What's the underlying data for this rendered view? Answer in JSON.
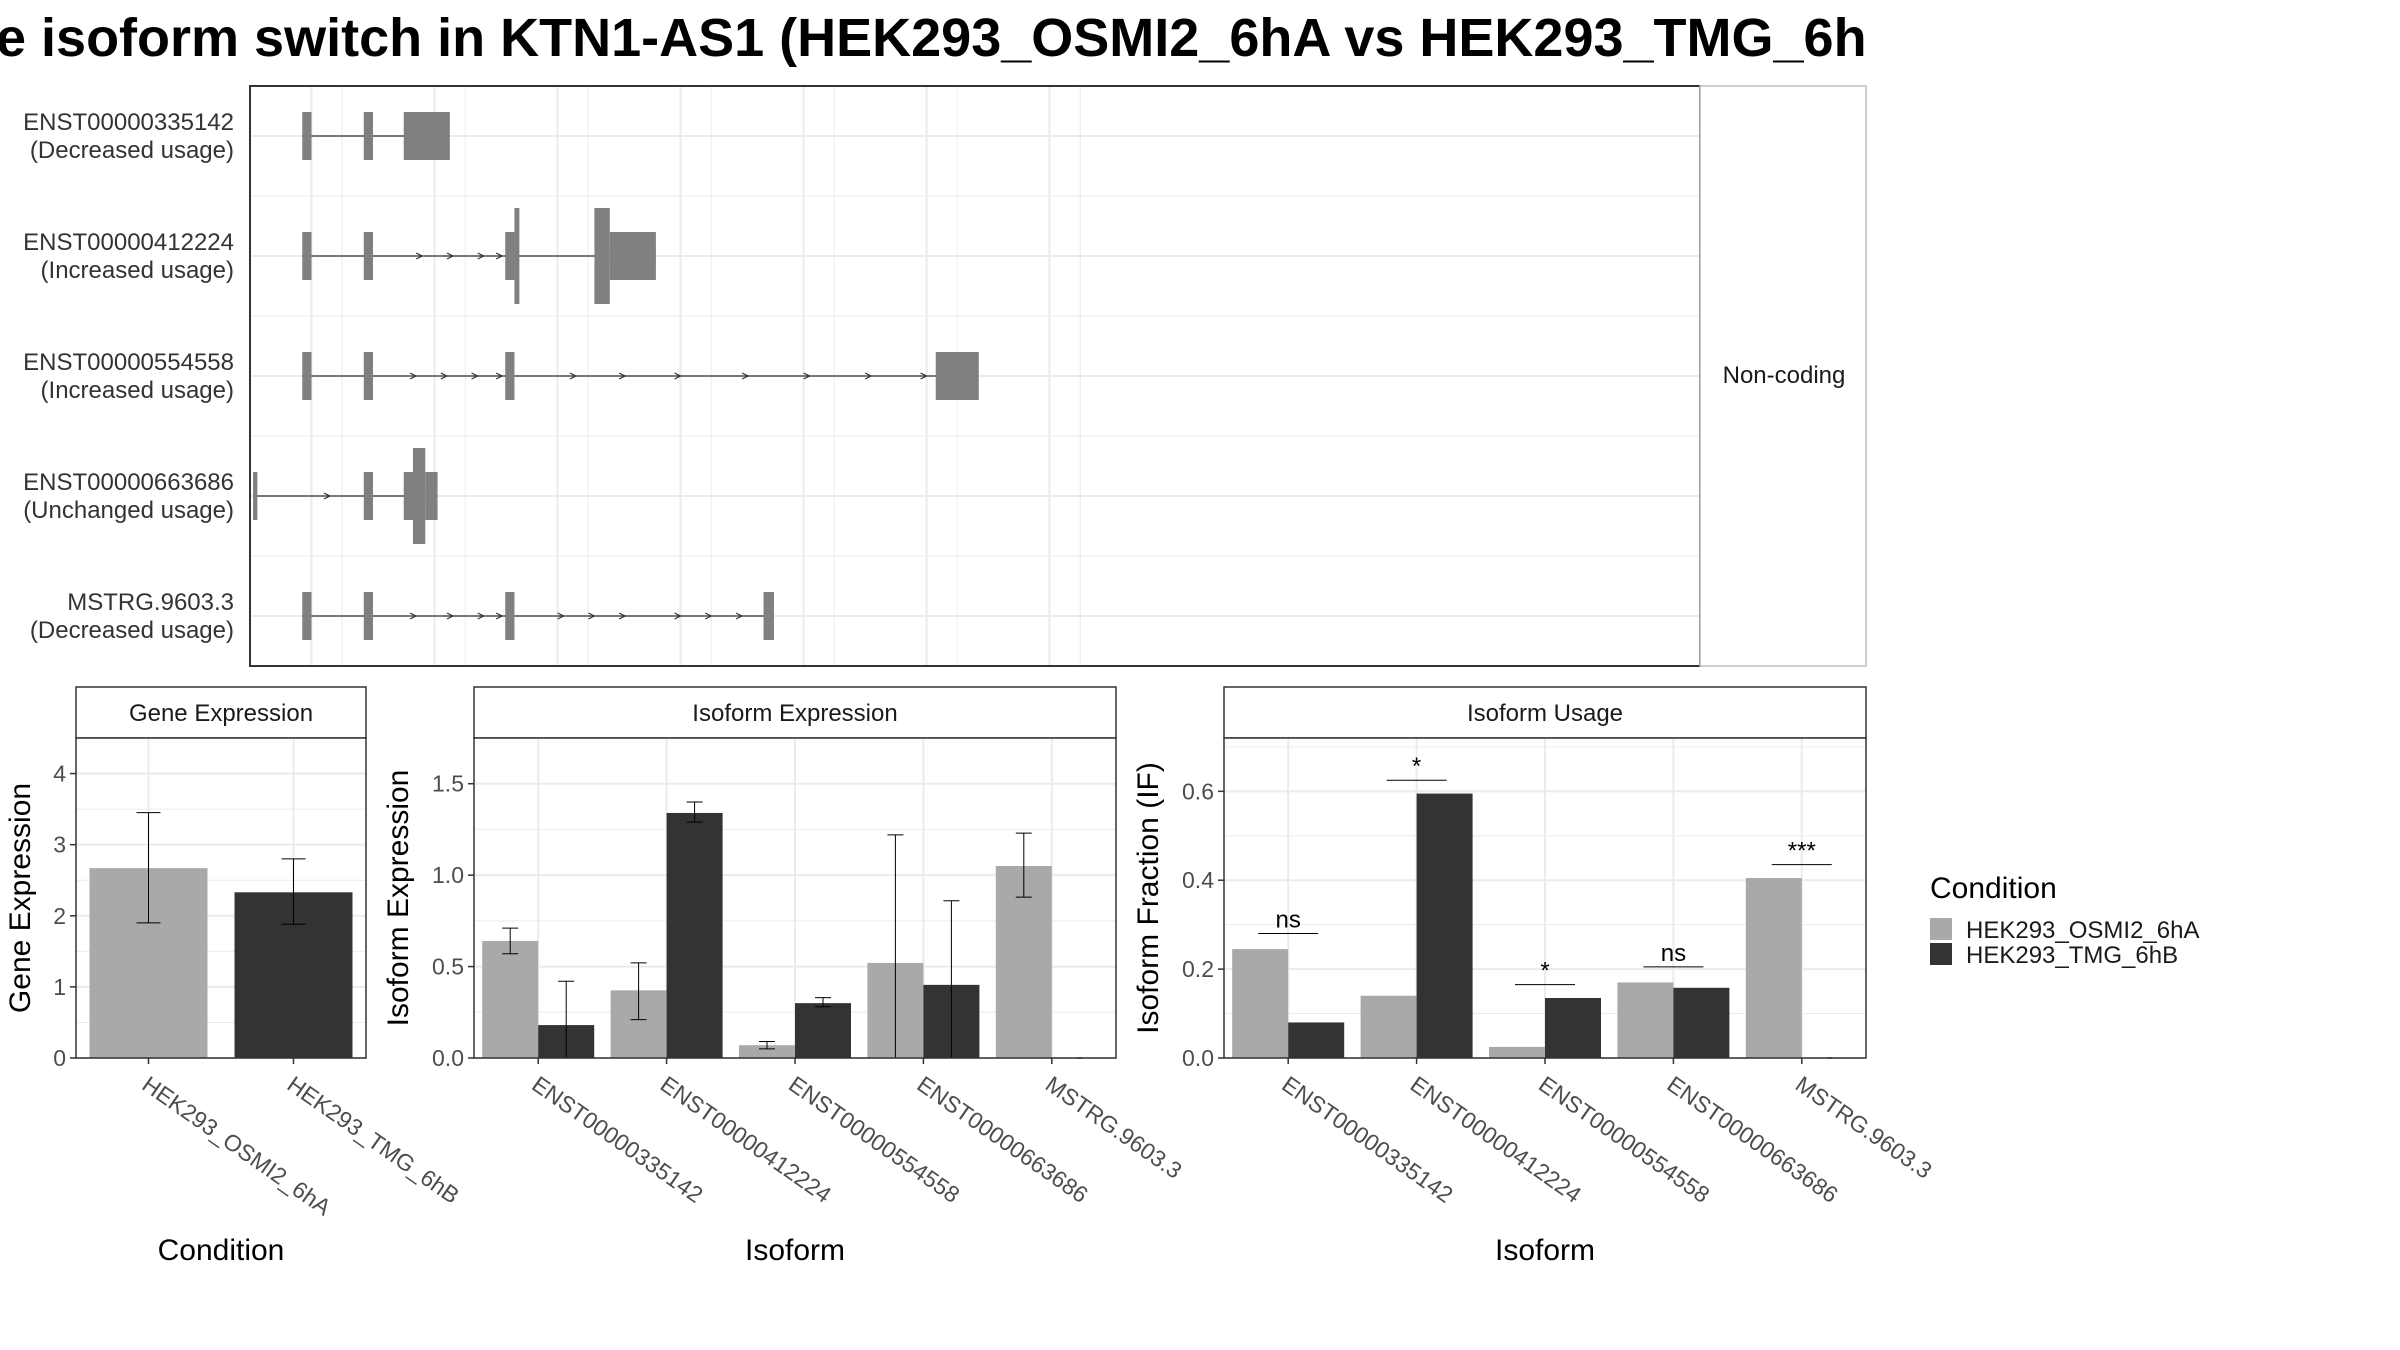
{
  "figure": {
    "title": "e isoform switch in KTN1-AS1 (HEK293_OSMI2_6hA vs HEK293_TMG_6h",
    "facet_strip": "Non-coding"
  },
  "legend": {
    "title": "Condition",
    "items": [
      {
        "label": "HEK293_OSMI2_6hA",
        "color": "#a9a9a9"
      },
      {
        "label": "HEK293_TMG_6hB",
        "color": "#333333"
      }
    ]
  },
  "colors": {
    "condition_a": "#a9a9a9",
    "condition_b": "#333333",
    "exon": "#808080",
    "grid": "#ebebeb",
    "panel_border": "#333333"
  },
  "chart_data": [
    {
      "type": "gene-structure",
      "panel": "transcript-structure",
      "facet": "Non-coding",
      "transcripts": [
        {
          "id": "ENST00000335142",
          "usage": "(Decreased usage)",
          "exons": [
            [
              0.85,
              1.0,
              "noncoding"
            ],
            [
              1.85,
              2.0,
              "noncoding"
            ],
            [
              2.5,
              3.25,
              "noncoding"
            ]
          ],
          "arrows": []
        },
        {
          "id": "ENST00000412224",
          "usage": "(Increased usage)",
          "exons": [
            [
              0.85,
              1.0,
              "noncoding"
            ],
            [
              1.85,
              2.0,
              "noncoding"
            ],
            [
              4.15,
              4.3,
              "noncoding"
            ],
            [
              4.3,
              4.38,
              "coding"
            ],
            [
              5.6,
              5.85,
              "coding"
            ],
            [
              5.85,
              6.6,
              "noncoding"
            ]
          ],
          "arrows": [
            2.8,
            3.3,
            3.8,
            4.1
          ]
        },
        {
          "id": "ENST00000554558",
          "usage": "(Increased usage)",
          "exons": [
            [
              0.85,
              1.0,
              "noncoding"
            ],
            [
              1.85,
              2.0,
              "noncoding"
            ],
            [
              4.15,
              4.3,
              "noncoding"
            ],
            [
              11.15,
              11.85,
              "noncoding"
            ]
          ],
          "arrows": [
            2.7,
            3.2,
            3.7,
            4.1,
            5.3,
            6.1,
            7.0,
            8.1,
            9.1,
            10.1,
            11.0
          ]
        },
        {
          "id": "ENST00000663686",
          "usage": "(Unchanged usage)",
          "exons": [
            [
              0.05,
              0.12,
              "noncoding"
            ],
            [
              1.85,
              2.0,
              "noncoding"
            ],
            [
              2.5,
              2.65,
              "noncoding"
            ],
            [
              2.65,
              2.85,
              "coding"
            ],
            [
              2.85,
              3.05,
              "noncoding"
            ]
          ],
          "arrows": [
            1.3
          ]
        },
        {
          "id": "MSTRG.9603.3",
          "usage": "(Decreased usage)",
          "exons": [
            [
              0.85,
              1.0,
              "noncoding"
            ],
            [
              1.85,
              2.0,
              "noncoding"
            ],
            [
              4.15,
              4.3,
              "noncoding"
            ],
            [
              8.35,
              8.52,
              "noncoding"
            ]
          ],
          "arrows": [
            2.7,
            3.3,
            3.8,
            4.1,
            5.1,
            5.6,
            6.1,
            7.0,
            7.5,
            8.0
          ]
        }
      ]
    },
    {
      "type": "bar",
      "panel": "gene-expression",
      "title": "Gene Expression",
      "xlabel": "Condition",
      "ylabel": "Gene Expression",
      "ylim": [
        0,
        4.5
      ],
      "yticks": [
        0,
        1,
        2,
        3,
        4
      ],
      "categories": [
        "HEK293_OSMI2_6hA",
        "HEK293_TMG_6hB"
      ],
      "values": [
        2.67,
        2.33
      ],
      "error_low": [
        1.9,
        1.88
      ],
      "error_high": [
        3.45,
        2.8
      ]
    },
    {
      "type": "bar",
      "panel": "isoform-expression",
      "title": "Isoform Expression",
      "xlabel": "Isoform",
      "ylabel": "Isoform Expression",
      "ylim": [
        0,
        1.75
      ],
      "yticks": [
        0.0,
        0.5,
        1.0,
        1.5
      ],
      "ytick_labels": [
        "0.0",
        "0.5",
        "1.0",
        "1.5"
      ],
      "categories": [
        "ENST00000335142",
        "ENST00000412224",
        "ENST00000554558",
        "ENST00000663686",
        "MSTRG.9603.3"
      ],
      "series": [
        {
          "name": "HEK293_OSMI2_6hA",
          "values": [
            0.64,
            0.37,
            0.07,
            0.52,
            1.05
          ],
          "error_low": [
            0.57,
            0.21,
            0.05,
            0.0,
            0.88
          ],
          "error_high": [
            0.71,
            0.52,
            0.09,
            1.22,
            1.23
          ]
        },
        {
          "name": "HEK293_TMG_6hB",
          "values": [
            0.18,
            1.34,
            0.3,
            0.4,
            0.0
          ],
          "error_low": [
            0.0,
            1.29,
            0.28,
            0.0,
            0.0
          ],
          "error_high": [
            0.42,
            1.4,
            0.33,
            0.86,
            0.0
          ]
        }
      ]
    },
    {
      "type": "bar",
      "panel": "isoform-usage",
      "title": "Isoform Usage",
      "xlabel": "Isoform",
      "ylabel": "Isoform Fraction (IF)",
      "ylim": [
        0,
        0.72
      ],
      "yticks": [
        0.0,
        0.2,
        0.4,
        0.6
      ],
      "ytick_labels": [
        "0.0",
        "0.2",
        "0.4",
        "0.6"
      ],
      "categories": [
        "ENST00000335142",
        "ENST00000412224",
        "ENST00000554558",
        "ENST00000663686",
        "MSTRG.9603.3"
      ],
      "series": [
        {
          "name": "HEK293_OSMI2_6hA",
          "values": [
            0.245,
            0.14,
            0.025,
            0.17,
            0.405
          ]
        },
        {
          "name": "HEK293_TMG_6hB",
          "values": [
            0.08,
            0.595,
            0.135,
            0.158,
            0.0
          ]
        }
      ],
      "significance": [
        {
          "label": "ns",
          "y": 0.28
        },
        {
          "label": "*",
          "y": 0.625
        },
        {
          "label": "*",
          "y": 0.165
        },
        {
          "label": "ns",
          "y": 0.205
        },
        {
          "label": "***",
          "y": 0.435
        }
      ]
    }
  ]
}
